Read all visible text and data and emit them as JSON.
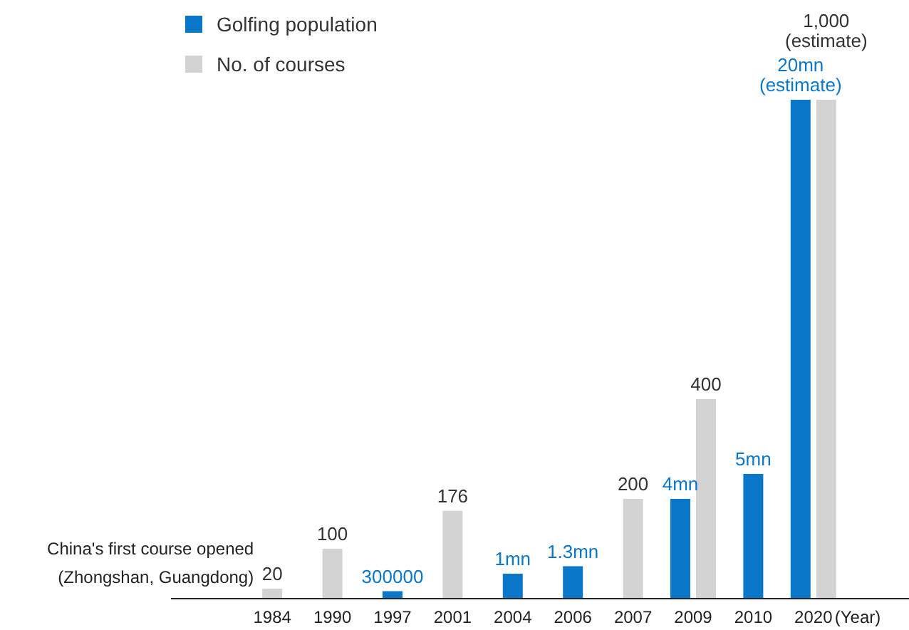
{
  "chart_data": {
    "type": "bar",
    "categories": [
      "1984",
      "1990",
      "1997",
      "2001",
      "2004",
      "2006",
      "2007",
      "2009",
      "2010",
      "2020"
    ],
    "xlabel": "(Year)",
    "legend": "top left",
    "data_labels": true,
    "series": [
      {
        "name": "Golfing population",
        "color": "#0a77c9",
        "values": [
          null,
          null,
          300000,
          null,
          1000000,
          1300000,
          null,
          4000000,
          5000000,
          20000000
        ],
        "value_labels": [
          null,
          null,
          "300000",
          null,
          "1mn",
          "1.3mn",
          null,
          "4mn",
          "5mn",
          "20mn\n(estimate)"
        ]
      },
      {
        "name": "No. of courses",
        "color": "#d3d3d3",
        "axis": "y2",
        "values": [
          20,
          100,
          null,
          176,
          null,
          null,
          200,
          400,
          null,
          1000
        ],
        "value_labels": [
          "20",
          "100",
          null,
          "176",
          null,
          null,
          "200",
          "400",
          null,
          "1,000\n(estimate)"
        ]
      }
    ],
    "annotations": [
      {
        "text": "China's first course opened\n(Zhongshan, Guangdong)",
        "x": "1984",
        "y": 20
      }
    ]
  }
}
